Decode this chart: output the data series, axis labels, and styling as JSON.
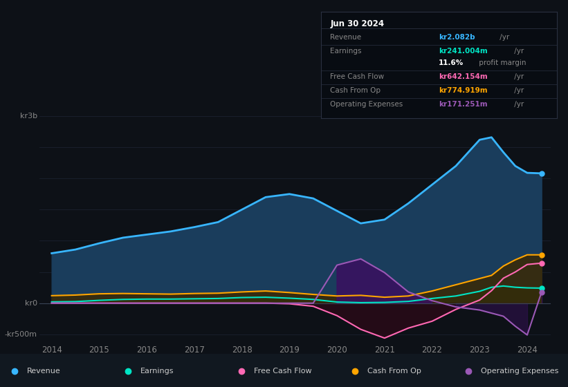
{
  "bg_color": "#0d1117",
  "plot_bg_color": "#0d1117",
  "info_box": {
    "date": "Jun 30 2024",
    "rows": [
      {
        "label": "Revenue",
        "value": "kr2.082b",
        "value_color": "#38b6ff",
        "suffix": " /yr"
      },
      {
        "label": "Earnings",
        "value": "kr241.004m",
        "value_color": "#00e5c5",
        "suffix": " /yr"
      },
      {
        "label": "",
        "value": "11.6%",
        "value_color": "#ffffff",
        "suffix": " profit margin"
      },
      {
        "label": "Free Cash Flow",
        "value": "kr642.154m",
        "value_color": "#ff69b4",
        "suffix": " /yr"
      },
      {
        "label": "Cash From Op",
        "value": "kr774.919m",
        "value_color": "#ffa500",
        "suffix": " /yr"
      },
      {
        "label": "Operating Expenses",
        "value": "kr171.251m",
        "value_color": "#9b59b6",
        "suffix": " /yr"
      }
    ]
  },
  "years": [
    2014,
    2014.5,
    2015,
    2015.5,
    2016,
    2016.5,
    2017,
    2017.5,
    2018,
    2018.5,
    2019,
    2019.5,
    2020,
    2020.5,
    2021,
    2021.5,
    2022,
    2022.5,
    2023,
    2023.25,
    2023.5,
    2023.75,
    2024,
    2024.3
  ],
  "revenue": [
    800,
    860,
    960,
    1050,
    1100,
    1150,
    1220,
    1300,
    1500,
    1700,
    1750,
    1680,
    1480,
    1280,
    1340,
    1600,
    1900,
    2200,
    2620,
    2660,
    2420,
    2200,
    2090,
    2082
  ],
  "earnings": [
    20,
    25,
    45,
    60,
    65,
    65,
    70,
    75,
    90,
    95,
    80,
    60,
    18,
    8,
    12,
    28,
    75,
    115,
    190,
    255,
    275,
    255,
    245,
    241
  ],
  "free_cash_flow": [
    0,
    0,
    0,
    0,
    0,
    0,
    0,
    0,
    0,
    0,
    -10,
    -50,
    -200,
    -420,
    -560,
    -400,
    -290,
    -100,
    50,
    200,
    400,
    500,
    620,
    642
  ],
  "cash_from_op": [
    120,
    130,
    150,
    155,
    150,
    145,
    155,
    160,
    180,
    195,
    170,
    140,
    115,
    125,
    95,
    115,
    195,
    295,
    395,
    445,
    595,
    695,
    775,
    775
  ],
  "operating_expenses": [
    0,
    0,
    0,
    0,
    0,
    0,
    0,
    0,
    0,
    0,
    0,
    0,
    610,
    710,
    490,
    180,
    40,
    -60,
    -110,
    -160,
    -210,
    -370,
    -510,
    171
  ],
  "revenue_color": "#38b6ff",
  "earnings_color": "#00e5c5",
  "free_cash_flow_color": "#ff69b4",
  "cash_from_op_color": "#ffa500",
  "operating_expenses_color": "#9b59b6",
  "revenue_fill_color": "#1a3d5c",
  "earnings_fill_color": "#0d3d35",
  "cash_from_op_fill_color": "#3d2800",
  "op_exp_fill_color": "#3a1060",
  "neg_fcf_fill_color": "#2a0a18",
  "ylim_top": 3000,
  "ylim_bottom": -600,
  "grid_lines_y": [
    -500,
    0,
    500,
    1000,
    1500,
    2000,
    2500,
    3000
  ],
  "xticks": [
    2014,
    2015,
    2016,
    2017,
    2018,
    2019,
    2020,
    2021,
    2022,
    2023,
    2024
  ],
  "grid_color": "#1e2535",
  "zero_line_color": "#3a4558",
  "text_color": "#888888",
  "legend_entries": [
    {
      "label": "Revenue",
      "color": "#38b6ff"
    },
    {
      "label": "Earnings",
      "color": "#00e5c5"
    },
    {
      "label": "Free Cash Flow",
      "color": "#ff69b4"
    },
    {
      "label": "Cash From Op",
      "color": "#ffa500"
    },
    {
      "label": "Operating Expenses",
      "color": "#9b59b6"
    }
  ]
}
